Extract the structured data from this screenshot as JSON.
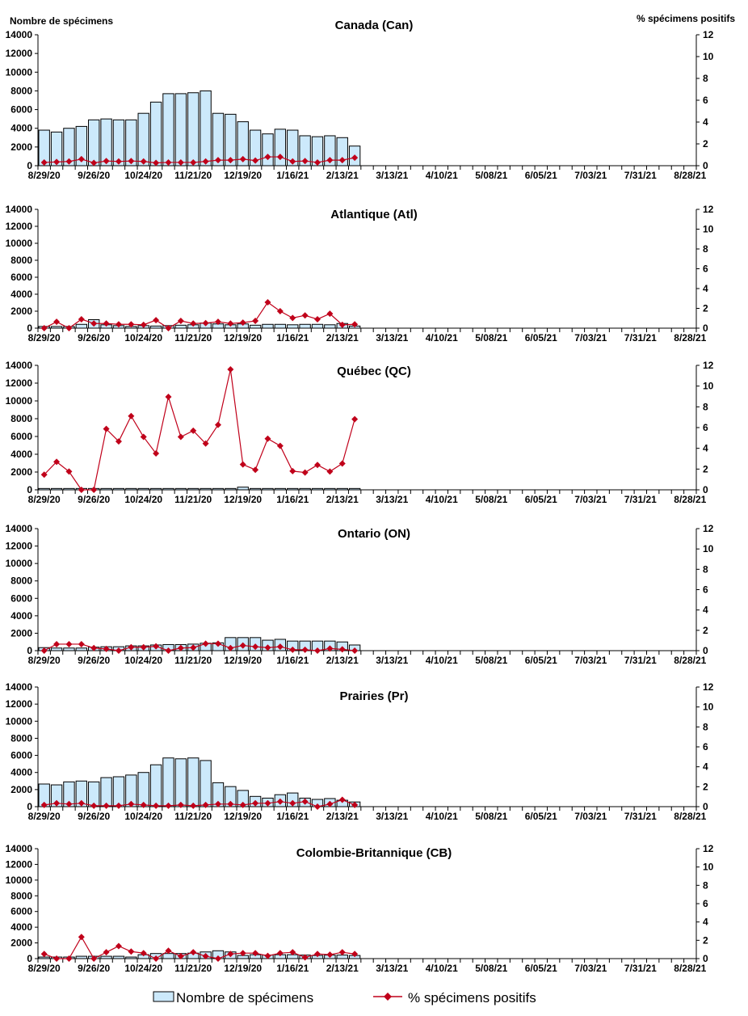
{
  "colors": {
    "bar_fill": "#cce9fb",
    "bar_stroke": "#000000",
    "line": "#c0001a"
  },
  "legend": {
    "bars": "Nombre de spécimens",
    "line": "% spécimens positifs"
  },
  "chart_data": {
    "type": "bar+line",
    "ylabel_left": "Nombre de spécimens",
    "ylabel_right": "% spécimens positifs",
    "ylim_left": [
      0,
      14000
    ],
    "yticks_left": [
      0,
      2000,
      4000,
      6000,
      8000,
      10000,
      12000,
      14000
    ],
    "ylim_right": [
      0,
      12
    ],
    "yticks_right": [
      0,
      2,
      4,
      6,
      8,
      10,
      12
    ],
    "x_tick_labels": [
      "8/29/20",
      "9/26/20",
      "10/24/20",
      "11/21/20",
      "12/19/20",
      "1/16/21",
      "2/13/21",
      "3/13/21",
      "4/10/21",
      "5/08/21",
      "6/05/21",
      "7/03/21",
      "7/31/21",
      "8/28/21"
    ],
    "x_weeks_total": 53,
    "legend_position": "bottom",
    "panels": [
      {
        "title": "Canada (Can)",
        "specimens": [
          3800,
          3600,
          4000,
          4200,
          4900,
          5000,
          4900,
          4900,
          5600,
          6800,
          7700,
          7700,
          7800,
          8000,
          5600,
          5500,
          4700,
          3800,
          3400,
          3900,
          3800,
          3200,
          3100,
          3200,
          3000,
          2100
        ],
        "pct_positive": [
          0.3,
          0.34,
          0.39,
          0.6,
          0.26,
          0.43,
          0.39,
          0.43,
          0.39,
          0.26,
          0.3,
          0.3,
          0.3,
          0.39,
          0.51,
          0.51,
          0.6,
          0.47,
          0.81,
          0.81,
          0.39,
          0.43,
          0.3,
          0.51,
          0.51,
          0.73
        ]
      },
      {
        "title": "Atlantique (Atl)",
        "specimens": [
          200,
          200,
          200,
          450,
          1000,
          400,
          300,
          200,
          300,
          250,
          300,
          350,
          400,
          600,
          500,
          400,
          500,
          350,
          450,
          450,
          400,
          450,
          450,
          400,
          550,
          250
        ],
        "pct_positive": [
          0,
          0.64,
          0,
          0.9,
          0.47,
          0.47,
          0.39,
          0.39,
          0.34,
          0.81,
          0,
          0.73,
          0.47,
          0.51,
          0.64,
          0.47,
          0.56,
          0.73,
          2.61,
          1.71,
          1.03,
          1.29,
          0.9,
          1.46,
          0.34,
          0.39
        ]
      },
      {
        "title": "Québec (QC)",
        "specimens": [
          150,
          150,
          150,
          150,
          150,
          150,
          150,
          150,
          150,
          150,
          150,
          150,
          150,
          150,
          150,
          150,
          300,
          150,
          150,
          150,
          150,
          150,
          150,
          150,
          150,
          150
        ],
        "pct_positive": [
          1.46,
          2.7,
          1.76,
          0,
          0,
          5.87,
          4.67,
          7.11,
          5.1,
          3.51,
          8.96,
          5.1,
          5.7,
          4.46,
          6.26,
          11.61,
          2.44,
          1.93,
          4.93,
          4.24,
          1.8,
          1.67,
          2.4,
          1.76,
          2.53,
          6.81
        ]
      },
      {
        "title": "Ontario (ON)",
        "specimens": [
          350,
          300,
          300,
          300,
          400,
          450,
          450,
          550,
          550,
          650,
          700,
          700,
          750,
          850,
          900,
          1500,
          1500,
          1500,
          1200,
          1300,
          1100,
          1100,
          1100,
          1100,
          1000,
          650
        ],
        "pct_positive": [
          0,
          0.64,
          0.64,
          0.64,
          0.26,
          0.17,
          0,
          0.34,
          0.34,
          0.43,
          0,
          0.26,
          0.3,
          0.69,
          0.69,
          0.26,
          0.51,
          0.39,
          0.3,
          0.39,
          0.09,
          0.09,
          0,
          0.21,
          0.13,
          0
        ]
      },
      {
        "title": "Prairies (Pr)",
        "specimens": [
          2650,
          2550,
          2900,
          3000,
          2900,
          3400,
          3500,
          3700,
          4000,
          4900,
          5700,
          5600,
          5700,
          5400,
          2800,
          2350,
          1900,
          1200,
          1000,
          1400,
          1600,
          1000,
          850,
          950,
          750,
          550
        ],
        "pct_positive": [
          0.17,
          0.34,
          0.26,
          0.34,
          0.09,
          0.09,
          0.09,
          0.26,
          0.17,
          0.09,
          0.09,
          0.17,
          0.09,
          0.17,
          0.26,
          0.26,
          0.17,
          0.34,
          0.34,
          0.51,
          0.34,
          0.51,
          0,
          0.26,
          0.69,
          0.17
        ]
      },
      {
        "title": "Colombie-Britannique (CB)",
        "specimens": [
          200,
          200,
          200,
          300,
          300,
          300,
          300,
          200,
          500,
          650,
          650,
          650,
          700,
          850,
          1000,
          850,
          400,
          500,
          450,
          500,
          500,
          450,
          400,
          450,
          450,
          400
        ],
        "pct_positive": [
          0.51,
          0,
          0,
          2.36,
          0,
          0.69,
          1.37,
          0.77,
          0.6,
          0,
          0.86,
          0.26,
          0.69,
          0.26,
          0,
          0.51,
          0.6,
          0.6,
          0.3,
          0.6,
          0.69,
          0.13,
          0.51,
          0.43,
          0.69,
          0.51
        ]
      }
    ]
  }
}
